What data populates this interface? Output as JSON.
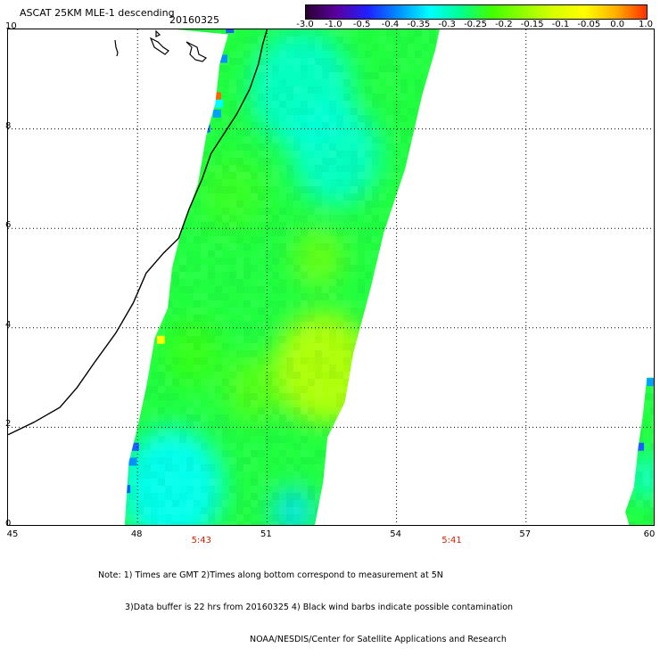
{
  "header": {
    "title": "ASCAT 25KM MLE-1 descending",
    "date": "20160325"
  },
  "colorbar": {
    "ticks": [
      "-3.0",
      "-1.0",
      "-0.5",
      "-0.4",
      "-0.35",
      "-0.3",
      "-0.25",
      "-0.2",
      "-0.15",
      "-0.1",
      "-0.05",
      "0.0",
      "1.0"
    ],
    "colors": [
      "#2a0030",
      "#5a00a0",
      "#2020ff",
      "#0090ff",
      "#00ffff",
      "#00ff90",
      "#40ff00",
      "#90ff00",
      "#d8ff00",
      "#ffff00",
      "#ffb000",
      "#ff3000"
    ]
  },
  "axes": {
    "x_ticks": [
      "45",
      "48",
      "51",
      "54",
      "57",
      "60"
    ],
    "y_ticks": [
      "0",
      "2",
      "4",
      "6",
      "8",
      "10"
    ],
    "times": [
      "5:43",
      "5:41"
    ]
  },
  "notes": {
    "line1": "Note: 1) Times are GMT 2)Times along bottom correspond to measurement at 5N",
    "line2": "3)Data buffer is 22 hrs from 20160325 4) Black wind barbs indicate possible contamination",
    "line3": "NOAA/NESDIS/Center for Satellite Applications and Research"
  },
  "map": {
    "lon_range": [
      45,
      60
    ],
    "lat_range": [
      0,
      10
    ],
    "coastline": [
      [
        45,
        1.85
      ],
      [
        45.6,
        2.1
      ],
      [
        46.2,
        2.4
      ],
      [
        46.6,
        2.8
      ],
      [
        47.0,
        3.3
      ],
      [
        47.5,
        3.9
      ],
      [
        47.9,
        4.5
      ],
      [
        48.2,
        5.1
      ],
      [
        48.6,
        5.5
      ],
      [
        48.95,
        5.8
      ],
      [
        49.2,
        6.4
      ],
      [
        49.5,
        7.0
      ],
      [
        49.7,
        7.5
      ],
      [
        50.0,
        7.9
      ],
      [
        50.3,
        8.3
      ],
      [
        50.6,
        8.8
      ],
      [
        50.8,
        9.3
      ],
      [
        50.9,
        9.7
      ],
      [
        51.0,
        10.0
      ]
    ],
    "swath_main": [
      [
        48.9,
        10
      ],
      [
        51.0,
        10
      ],
      [
        52.0,
        10
      ],
      [
        53.1,
        10
      ],
      [
        54.4,
        10
      ],
      [
        55.0,
        10
      ],
      [
        54.9,
        9.6
      ],
      [
        54.6,
        8.7
      ],
      [
        54.2,
        7.2
      ],
      [
        53.7,
        5.9
      ],
      [
        53.4,
        4.8
      ],
      [
        53.0,
        3.5
      ],
      [
        52.8,
        2.5
      ],
      [
        52.4,
        1.8
      ],
      [
        52.3,
        0.9
      ],
      [
        52.1,
        0
      ],
      [
        47.7,
        0
      ],
      [
        47.8,
        1.3
      ],
      [
        48.0,
        2.0
      ],
      [
        48.2,
        2.8
      ],
      [
        48.4,
        3.8
      ],
      [
        48.7,
        4.4
      ],
      [
        48.8,
        5.2
      ],
      [
        49.0,
        5.9
      ],
      [
        49.4,
        6.9
      ],
      [
        49.6,
        7.9
      ],
      [
        49.8,
        8.5
      ],
      [
        49.9,
        9.3
      ],
      [
        50.1,
        9.9
      ]
    ],
    "swath_right": [
      [
        59.4,
        0
      ],
      [
        60,
        0
      ],
      [
        60,
        3.0
      ],
      [
        59.8,
        3.0
      ],
      [
        59.7,
        2.2
      ],
      [
        59.6,
        1.6
      ],
      [
        59.5,
        0.8
      ],
      [
        59.3,
        0.3
      ]
    ],
    "hotspots": [
      {
        "lon": 52.3,
        "lat": 3.2,
        "r": 1.5,
        "color": "#c8ff00",
        "strength": 0.85
      },
      {
        "lon": 53.2,
        "lat": 2.2,
        "r": 0.35,
        "color": "#ffd000",
        "strength": 0.9
      },
      {
        "lon": 52.2,
        "lat": 5.4,
        "r": 0.8,
        "color": "#90ff00",
        "strength": 0.6
      },
      {
        "lon": 51.8,
        "lat": 8.8,
        "r": 1.6,
        "color": "#00ffd8",
        "strength": 0.85
      },
      {
        "lon": 52.6,
        "lat": 7.5,
        "r": 1.4,
        "color": "#00ffe0",
        "strength": 0.8
      },
      {
        "lon": 48.8,
        "lat": 0.8,
        "r": 1.6,
        "color": "#00ffff",
        "strength": 0.9
      },
      {
        "lon": 51.6,
        "lat": 0.3,
        "r": 0.7,
        "color": "#00e0ff",
        "strength": 0.8
      },
      {
        "lon": 50.2,
        "lat": 6.7,
        "r": 1.0,
        "color": "#40ff20",
        "strength": 0.7
      },
      {
        "lon": 49.3,
        "lat": 3.5,
        "r": 0.9,
        "color": "#40ff00",
        "strength": 0.6
      },
      {
        "lon": 50.7,
        "lat": 2.8,
        "r": 0.9,
        "color": "#70ff00",
        "strength": 0.6
      },
      {
        "lon": 59.8,
        "lat": 1.0,
        "r": 0.6,
        "color": "#00ffff",
        "strength": 0.7
      }
    ],
    "special_pixels": [
      {
        "lon": 49.85,
        "lat": 8.65,
        "color": "#ff6000"
      },
      {
        "lon": 49.6,
        "lat": 8.0,
        "color": "#1a60ff"
      },
      {
        "lon": 49.85,
        "lat": 8.3,
        "color": "#00a0ff"
      },
      {
        "lon": 49.9,
        "lat": 8.5,
        "color": "#00ffff"
      },
      {
        "lon": 50.0,
        "lat": 9.4,
        "color": "#0090ff"
      },
      {
        "lon": 50.15,
        "lat": 10.0,
        "color": "#1a60ff"
      },
      {
        "lon": 47.95,
        "lat": 1.6,
        "color": "#1a60ff"
      },
      {
        "lon": 47.75,
        "lat": 0.75,
        "color": "#0060ff"
      },
      {
        "lon": 47.9,
        "lat": 1.3,
        "color": "#0090ff"
      },
      {
        "lon": 48.55,
        "lat": 3.75,
        "color": "#ffff00"
      },
      {
        "lon": 59.65,
        "lat": 1.6,
        "color": "#1a60ff"
      },
      {
        "lon": 59.9,
        "lat": 2.9,
        "color": "#00a0ff"
      },
      {
        "lon": 53.25,
        "lat": 2.0,
        "color": "#ffc000"
      },
      {
        "lon": 53.15,
        "lat": 2.3,
        "color": "#f0ff00"
      }
    ]
  }
}
